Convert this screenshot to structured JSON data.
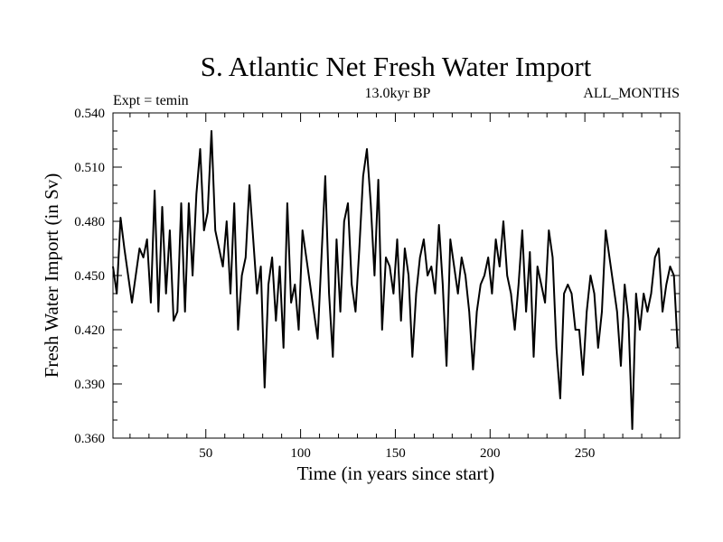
{
  "chart_data": {
    "type": "line",
    "title": "S. Atlantic Net Fresh Water Import",
    "subtitle_left": "Expt = temin",
    "subtitle_center": "13.0kyr BP",
    "subtitle_right": "ALL_MONTHS",
    "xlabel": "Time (in years since start)",
    "ylabel": "Fresh Water Import (in Sv)",
    "xlim": [
      1,
      300
    ],
    "ylim": [
      0.36,
      0.54
    ],
    "xticks": [
      50,
      100,
      150,
      200,
      250
    ],
    "xtick_labels": [
      "50",
      "100",
      "150",
      "200",
      "250"
    ],
    "yticks": [
      0.36,
      0.39,
      0.42,
      0.45,
      0.48,
      0.51,
      0.54
    ],
    "ytick_labels": [
      "0.360",
      "0.390",
      "0.420",
      "0.450",
      "0.480",
      "0.510",
      "0.540"
    ],
    "grid": false,
    "line_color": "#000000",
    "x_start": 1,
    "x_step": 2,
    "values": [
      0.455,
      0.44,
      0.482,
      0.465,
      0.45,
      0.435,
      0.45,
      0.465,
      0.46,
      0.47,
      0.435,
      0.497,
      0.43,
      0.488,
      0.44,
      0.475,
      0.425,
      0.43,
      0.49,
      0.43,
      0.49,
      0.45,
      0.495,
      0.52,
      0.475,
      0.485,
      0.53,
      0.475,
      0.465,
      0.455,
      0.48,
      0.44,
      0.49,
      0.42,
      0.45,
      0.46,
      0.5,
      0.47,
      0.44,
      0.455,
      0.388,
      0.445,
      0.46,
      0.425,
      0.455,
      0.41,
      0.49,
      0.435,
      0.445,
      0.42,
      0.475,
      0.46,
      0.445,
      0.43,
      0.415,
      0.46,
      0.505,
      0.44,
      0.405,
      0.47,
      0.43,
      0.48,
      0.49,
      0.445,
      0.43,
      0.465,
      0.505,
      0.52,
      0.49,
      0.45,
      0.503,
      0.42,
      0.46,
      0.455,
      0.44,
      0.47,
      0.425,
      0.465,
      0.45,
      0.405,
      0.44,
      0.46,
      0.47,
      0.45,
      0.455,
      0.44,
      0.478,
      0.445,
      0.4,
      0.47,
      0.455,
      0.44,
      0.46,
      0.45,
      0.43,
      0.398,
      0.43,
      0.445,
      0.45,
      0.46,
      0.44,
      0.47,
      0.455,
      0.48,
      0.45,
      0.44,
      0.42,
      0.445,
      0.475,
      0.43,
      0.463,
      0.405,
      0.455,
      0.445,
      0.435,
      0.475,
      0.46,
      0.41,
      0.382,
      0.44,
      0.445,
      0.44,
      0.42,
      0.42,
      0.395,
      0.43,
      0.45,
      0.44,
      0.41,
      0.43,
      0.475,
      0.46,
      0.445,
      0.43,
      0.4,
      0.445,
      0.426,
      0.365,
      0.44,
      0.42,
      0.44,
      0.43,
      0.44,
      0.46,
      0.465,
      0.43,
      0.445,
      0.455,
      0.45,
      0.41
    ]
  }
}
